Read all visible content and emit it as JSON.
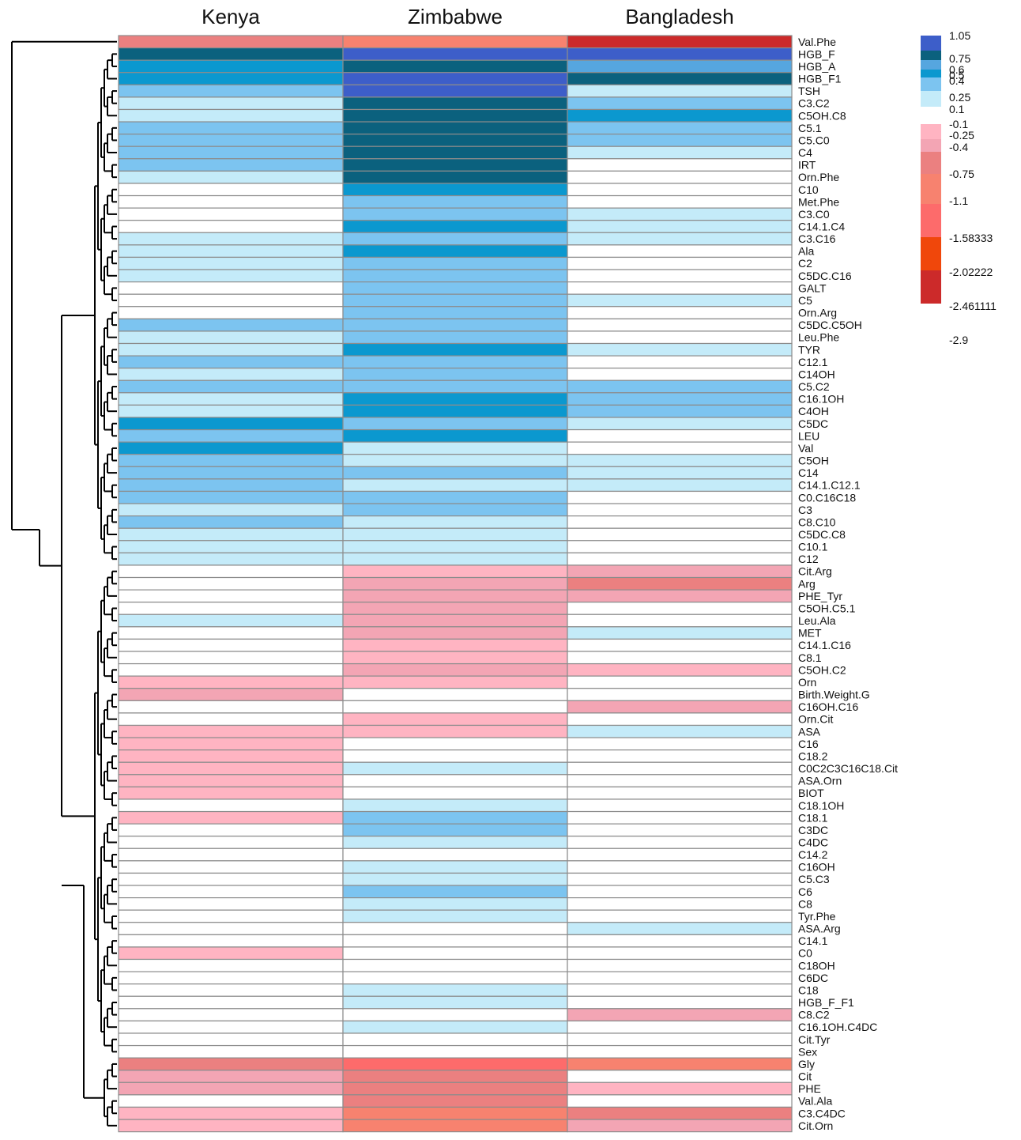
{
  "chart_data": {
    "type": "heatmap",
    "columns": [
      "Kenya",
      "Zimbabwe",
      "Bangladesh"
    ],
    "rows": [
      "Val.Phe",
      "HGB_F",
      "HGB_A",
      "HGB_F1",
      "TSH",
      "C3.C2",
      "C5OH.C8",
      "C5.1",
      "C5.C0",
      "C4",
      "IRT",
      "Orn.Phe",
      "C10",
      "Met.Phe",
      "C3.C0",
      "C14.1.C4",
      "C3.C16",
      "Ala",
      "C2",
      "C5DC.C16",
      "GALT",
      "C5",
      "Orn.Arg",
      "C5DC.C5OH",
      "Leu.Phe",
      "TYR",
      "C12.1",
      "C14OH",
      "C5.C2",
      "C16.1OH",
      "C4OH",
      "C5DC",
      "LEU",
      "Val",
      "C5OH",
      "C14",
      "C14.1.C12.1",
      "C0.C16C18",
      "C3",
      "C8.C10",
      "C5DC.C8",
      "C10.1",
      "C12",
      "Cit.Arg",
      "Arg",
      "PHE_Tyr",
      "C5OH.C5.1",
      "Leu.Ala",
      "MET",
      "C14.1.C16",
      "C8.1",
      "C5OH.C2",
      "Orn",
      "Birth.Weight.G",
      "C16OH.C16",
      "Orn.Cit",
      "ASA",
      "C16",
      "C18.2",
      "C0C2C3C16C18.Cit",
      "ASA.Orn",
      "BIOT",
      "C18.1OH",
      "C18.1",
      "C3DC",
      "C4DC",
      "C14.2",
      "C16OH",
      "C5.C3",
      "C6",
      "C8",
      "Tyr.Phe",
      "ASA.Arg",
      "C14.1",
      "C0",
      "C18OH",
      "C6DC",
      "C18",
      "HGB_F_F1",
      "C8.C2",
      "C16.1OH.C4DC",
      "Cit.Tyr",
      "Sex",
      "Gly",
      "Cit",
      "PHE",
      "Val.Ala",
      "C3.C4DC",
      "Cit.Orn"
    ],
    "values": [
      [
        -1.0,
        -1.3,
        -2.9
      ],
      [
        0.8,
        1.05,
        0.9
      ],
      [
        0.5,
        0.8,
        0.6
      ],
      [
        0.5,
        0.9,
        0.8
      ],
      [
        0.3,
        0.9,
        0.1
      ],
      [
        0.15,
        0.8,
        0.3
      ],
      [
        0.15,
        0.8,
        0.5
      ],
      [
        0.4,
        0.8,
        0.3
      ],
      [
        0.4,
        0.8,
        0.3
      ],
      [
        0.4,
        0.8,
        0.15
      ],
      [
        0.4,
        0.8,
        0.0
      ],
      [
        0.15,
        0.8,
        0.0
      ],
      [
        0.0,
        0.55,
        0.0
      ],
      [
        0.0,
        0.3,
        0.0
      ],
      [
        0.0,
        0.3,
        0.15
      ],
      [
        0.0,
        0.55,
        0.15
      ],
      [
        0.15,
        0.3,
        0.15
      ],
      [
        0.15,
        0.55,
        0.0
      ],
      [
        0.15,
        0.3,
        0.0
      ],
      [
        0.15,
        0.3,
        0.0
      ],
      [
        0.0,
        0.3,
        0.0
      ],
      [
        0.0,
        0.3,
        0.15
      ],
      [
        0.0,
        0.3,
        0.0
      ],
      [
        0.4,
        0.45,
        0.0
      ],
      [
        0.15,
        0.3,
        0.0
      ],
      [
        0.15,
        0.55,
        0.15
      ],
      [
        0.4,
        0.3,
        0.0
      ],
      [
        0.15,
        0.3,
        0.0
      ],
      [
        0.4,
        0.3,
        0.3
      ],
      [
        0.15,
        0.55,
        0.3
      ],
      [
        0.15,
        0.55,
        0.3
      ],
      [
        0.55,
        0.45,
        0.15
      ],
      [
        0.45,
        0.55,
        0.0
      ],
      [
        0.55,
        0.15,
        0.0
      ],
      [
        0.4,
        0.15,
        0.15
      ],
      [
        0.4,
        0.3,
        0.15
      ],
      [
        0.4,
        0.15,
        0.15
      ],
      [
        0.3,
        0.3,
        0.0
      ],
      [
        0.15,
        0.3,
        0.0
      ],
      [
        0.3,
        0.15,
        0.0
      ],
      [
        0.15,
        0.15,
        0.0
      ],
      [
        0.15,
        0.15,
        0.0
      ],
      [
        0.15,
        0.15,
        0.0
      ],
      [
        0.0,
        -0.3,
        -0.5
      ],
      [
        0.0,
        -0.5,
        -0.8
      ],
      [
        0.0,
        -0.5,
        -0.5
      ],
      [
        0.0,
        -0.5,
        0.0
      ],
      [
        0.15,
        -0.5,
        0.0
      ],
      [
        0.0,
        -0.5,
        0.15
      ],
      [
        0.0,
        -0.3,
        0.0
      ],
      [
        0.0,
        -0.3,
        0.0
      ],
      [
        0.0,
        -0.5,
        -0.3
      ],
      [
        -0.3,
        -0.3,
        0.0
      ],
      [
        -0.5,
        0.0,
        0.0
      ],
      [
        0.0,
        0.0,
        -0.5
      ],
      [
        0.0,
        -0.3,
        0.0
      ],
      [
        -0.3,
        -0.3,
        0.15
      ],
      [
        -0.3,
        0.0,
        0.0
      ],
      [
        -0.3,
        0.0,
        0.0
      ],
      [
        -0.3,
        0.15,
        0.0
      ],
      [
        -0.3,
        0.0,
        0.0
      ],
      [
        -0.3,
        0.0,
        0.0
      ],
      [
        0.0,
        0.15,
        0.0
      ],
      [
        -0.3,
        0.3,
        0.0
      ],
      [
        0.0,
        0.4,
        0.0
      ],
      [
        0.0,
        0.15,
        0.0
      ],
      [
        0.0,
        0.0,
        0.0
      ],
      [
        0.0,
        0.15,
        0.0
      ],
      [
        0.0,
        0.15,
        0.0
      ],
      [
        0.0,
        0.3,
        0.0
      ],
      [
        0.0,
        0.15,
        0.0
      ],
      [
        0.0,
        0.15,
        0.0
      ],
      [
        0.0,
        0.0,
        0.15
      ],
      [
        0.0,
        0.0,
        0.0
      ],
      [
        -0.3,
        0.0,
        0.0
      ],
      [
        0.0,
        0.0,
        0.0
      ],
      [
        0.0,
        0.0,
        0.0
      ],
      [
        0.0,
        0.15,
        0.0
      ],
      [
        0.0,
        0.15,
        0.0
      ],
      [
        0.0,
        0.0,
        -0.5
      ],
      [
        0.0,
        0.15,
        0.0
      ],
      [
        0.0,
        0.0,
        0.0
      ],
      [
        0.0,
        0.0,
        0.0
      ],
      [
        -0.8,
        -1.6,
        -1.3
      ],
      [
        -0.5,
        -0.8,
        0.0
      ],
      [
        -0.5,
        -0.8,
        -0.3
      ],
      [
        0.0,
        -0.8,
        0.0
      ],
      [
        -0.3,
        -1.3,
        -0.8
      ],
      [
        -0.3,
        -1.3,
        -0.5
      ]
    ],
    "legend": {
      "position": "top-right",
      "labels": [
        "1.05",
        "0.75",
        "0.6",
        "0.5",
        "0.4",
        "0.25",
        "0.1",
        "-0.1",
        "-0.25",
        "-0.4",
        "-0.75",
        "-1.1",
        "-1.58333",
        "-2.02222",
        "-2.461111",
        "-2.9"
      ],
      "colors": [
        "#3d5ec9",
        "#0b617e",
        "#56a6df",
        "#0b98cf",
        "#7cc4f0",
        "#c4ebf9",
        "#ffb4c2",
        "#f3a5b4",
        "#eb8080",
        "#f7826f",
        "#fd6b6b",
        "#f0470b",
        "#cc2a2a"
      ],
      "bounds": [
        1.05,
        0.75,
        0.6,
        0.5,
        0.4,
        0.25,
        0.1,
        -0.1,
        -0.25,
        -0.4,
        -0.75,
        -1.1,
        -1.58333,
        -2.02222,
        -2.461111,
        -2.9
      ]
    },
    "dendrogram": true,
    "grid": true
  }
}
